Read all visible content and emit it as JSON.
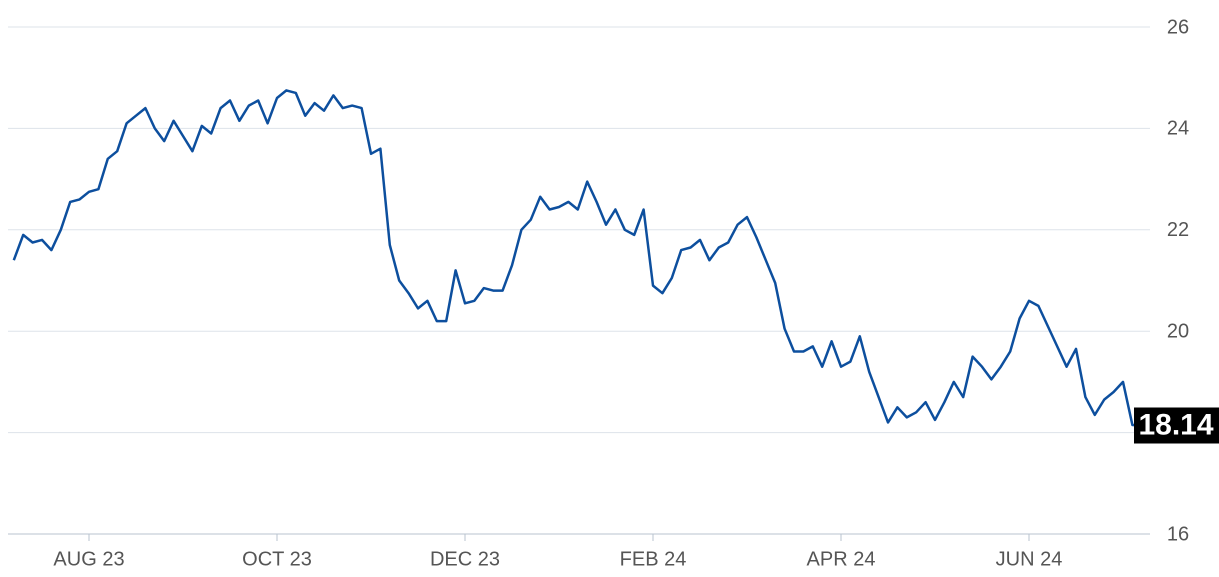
{
  "chart_data": {
    "type": "line",
    "categories": [
      null,
      null,
      null,
      null,
      null,
      null,
      null,
      null,
      "AUG 23",
      null,
      null,
      null,
      null,
      null,
      null,
      null,
      null,
      null,
      null,
      null,
      null,
      null,
      null,
      null,
      null,
      null,
      null,
      null,
      "OCT 23",
      null,
      null,
      null,
      null,
      null,
      null,
      null,
      null,
      null,
      null,
      null,
      null,
      null,
      null,
      null,
      null,
      null,
      null,
      null,
      "DEC 23",
      null,
      null,
      null,
      null,
      null,
      null,
      null,
      null,
      null,
      null,
      null,
      null,
      null,
      null,
      null,
      null,
      null,
      null,
      null,
      "FEB 24",
      null,
      null,
      null,
      null,
      null,
      null,
      null,
      null,
      null,
      null,
      null,
      null,
      null,
      null,
      null,
      null,
      null,
      null,
      null,
      "APR 24",
      null,
      null,
      null,
      null,
      null,
      null,
      null,
      null,
      null,
      null,
      null,
      null,
      null,
      null,
      null,
      null,
      null,
      null,
      null,
      "JUN 24",
      null,
      null,
      null,
      null,
      null,
      null,
      null,
      null,
      null,
      null,
      null,
      null
    ],
    "values": [
      21.4,
      21.9,
      21.75,
      21.8,
      21.6,
      22.0,
      22.55,
      22.6,
      22.75,
      22.8,
      23.4,
      23.55,
      24.1,
      24.25,
      24.4,
      24.0,
      23.75,
      24.15,
      23.85,
      23.55,
      24.05,
      23.9,
      24.4,
      24.55,
      24.15,
      24.45,
      24.55,
      24.1,
      24.6,
      24.75,
      24.7,
      24.25,
      24.5,
      24.35,
      24.65,
      24.4,
      24.45,
      24.4,
      23.5,
      23.6,
      21.7,
      21.0,
      20.75,
      20.45,
      20.6,
      20.2,
      20.2,
      21.2,
      20.55,
      20.6,
      20.85,
      20.8,
      20.8,
      21.3,
      22.0,
      22.2,
      22.65,
      22.4,
      22.45,
      22.55,
      22.4,
      22.95,
      22.55,
      22.1,
      22.4,
      22.0,
      21.9,
      22.4,
      20.9,
      20.75,
      21.05,
      21.6,
      21.65,
      21.8,
      21.4,
      21.65,
      21.75,
      22.1,
      22.25,
      21.85,
      21.4,
      20.95,
      20.05,
      19.6,
      19.6,
      19.7,
      19.3,
      19.8,
      19.3,
      19.4,
      19.9,
      19.2,
      18.7,
      18.2,
      18.5,
      18.3,
      18.4,
      18.6,
      18.25,
      18.6,
      19.0,
      18.7,
      19.5,
      19.3,
      19.05,
      19.3,
      19.6,
      20.25,
      20.6,
      20.5,
      20.1,
      19.7,
      19.3,
      19.65,
      18.7,
      18.35,
      18.65,
      18.8,
      19.0,
      18.15,
      18.14
    ],
    "color": "#0d4f9e",
    "current_value": 18.14,
    "ylim": [
      16,
      26
    ],
    "yticks": [
      16,
      18,
      20,
      22,
      24,
      26
    ],
    "grid": true
  }
}
